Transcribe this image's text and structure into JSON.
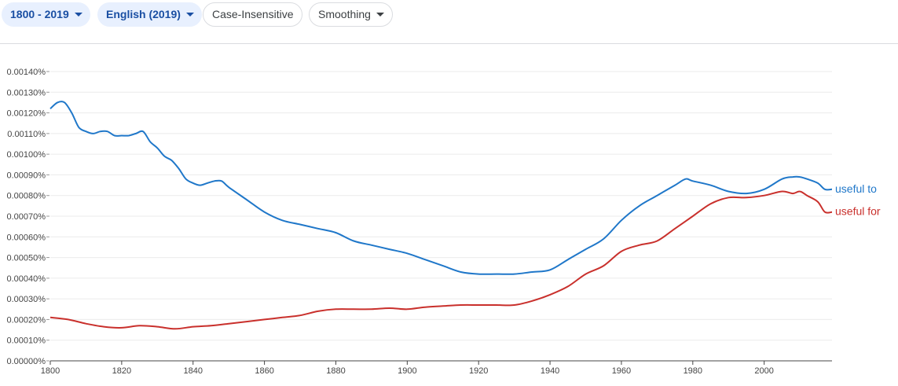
{
  "toolbar": {
    "year_range": {
      "label": "1800 - 2019",
      "icon": "chevron-down-icon"
    },
    "corpus": {
      "label": "English (2019)",
      "icon": "chevron-down-icon"
    },
    "case": {
      "label": "Case-Insensitive"
    },
    "smoothing": {
      "label": "Smoothing",
      "icon": "chevron-down-icon"
    }
  },
  "colors": {
    "chip_bg": "#e8f0fe",
    "chip_text": "#1a4fa3",
    "series_blue": "#1f77c9",
    "series_red": "#c9302c"
  },
  "chart_data": {
    "type": "line",
    "xlabel": "",
    "ylabel": "",
    "xlim": [
      1800,
      2019
    ],
    "ylim": [
      0,
      0.0014
    ],
    "grid": true,
    "y_ticks": [
      "0.00140%",
      "0.00130%",
      "0.00120%",
      "0.00110%",
      "0.00100%",
      "0.00090%",
      "0.00080%",
      "0.00070%",
      "0.00060%",
      "0.00050%",
      "0.00040%",
      "0.00030%",
      "0.00020%",
      "0.00010%",
      "0.00000%"
    ],
    "x_ticks": [
      "1800",
      "1820",
      "1840",
      "1860",
      "1880",
      "1900",
      "1920",
      "1940",
      "1960",
      "1980",
      "2000"
    ],
    "series": [
      {
        "name": "useful to",
        "color": "#1f77c9",
        "x": [
          1800,
          1802,
          1804,
          1806,
          1808,
          1810,
          1812,
          1814,
          1816,
          1818,
          1820,
          1822,
          1824,
          1826,
          1828,
          1830,
          1832,
          1834,
          1836,
          1838,
          1840,
          1842,
          1844,
          1846,
          1848,
          1850,
          1855,
          1860,
          1865,
          1870,
          1875,
          1880,
          1885,
          1890,
          1895,
          1900,
          1905,
          1910,
          1915,
          1920,
          1925,
          1930,
          1935,
          1940,
          1945,
          1950,
          1955,
          1960,
          1965,
          1970,
          1975,
          1978,
          1980,
          1985,
          1990,
          1995,
          2000,
          2005,
          2008,
          2010,
          2012,
          2015,
          2017,
          2019
        ],
        "y": [
          0.00122,
          0.00125,
          0.00125,
          0.0012,
          0.00113,
          0.00111,
          0.0011,
          0.00111,
          0.00111,
          0.00109,
          0.00109,
          0.00109,
          0.0011,
          0.00111,
          0.00106,
          0.00103,
          0.00099,
          0.00097,
          0.00093,
          0.00088,
          0.00086,
          0.00085,
          0.00086,
          0.00087,
          0.00087,
          0.00084,
          0.00078,
          0.00072,
          0.00068,
          0.00066,
          0.00064,
          0.00062,
          0.00058,
          0.00056,
          0.00054,
          0.00052,
          0.00049,
          0.00046,
          0.00043,
          0.00042,
          0.00042,
          0.00042,
          0.00043,
          0.00044,
          0.00049,
          0.00054,
          0.00059,
          0.00068,
          0.00075,
          0.0008,
          0.00085,
          0.00088,
          0.00087,
          0.00085,
          0.00082,
          0.00081,
          0.00083,
          0.00088,
          0.00089,
          0.00089,
          0.00088,
          0.00086,
          0.00083,
          0.00083
        ]
      },
      {
        "name": "useful for",
        "color": "#c9302c",
        "x": [
          1800,
          1805,
          1810,
          1815,
          1820,
          1825,
          1830,
          1835,
          1840,
          1845,
          1850,
          1855,
          1860,
          1865,
          1870,
          1875,
          1880,
          1885,
          1890,
          1895,
          1900,
          1905,
          1910,
          1915,
          1920,
          1925,
          1930,
          1935,
          1940,
          1945,
          1950,
          1955,
          1960,
          1965,
          1970,
          1975,
          1980,
          1985,
          1990,
          1995,
          2000,
          2005,
          2008,
          2010,
          2012,
          2015,
          2017,
          2019
        ],
        "y": [
          0.00021,
          0.0002,
          0.00018,
          0.000165,
          0.00016,
          0.00017,
          0.000165,
          0.000155,
          0.000165,
          0.00017,
          0.00018,
          0.00019,
          0.0002,
          0.00021,
          0.00022,
          0.00024,
          0.00025,
          0.00025,
          0.00025,
          0.000255,
          0.00025,
          0.00026,
          0.000265,
          0.00027,
          0.00027,
          0.00027,
          0.00027,
          0.00029,
          0.00032,
          0.00036,
          0.00042,
          0.00046,
          0.00053,
          0.00056,
          0.00058,
          0.00064,
          0.0007,
          0.00076,
          0.00079,
          0.00079,
          0.0008,
          0.00082,
          0.00081,
          0.00082,
          0.0008,
          0.00077,
          0.00072,
          0.00072
        ]
      }
    ]
  }
}
